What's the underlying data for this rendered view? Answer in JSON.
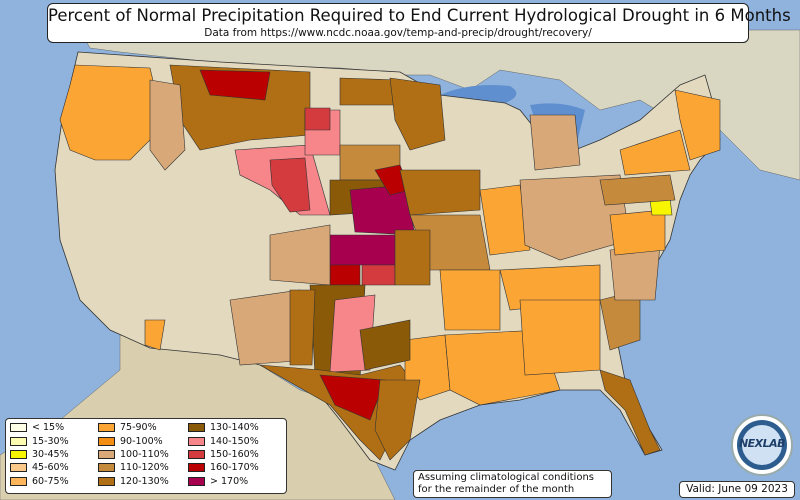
{
  "title": "Percent of Normal Precipitation Required to End Current Hydrological Drought in 6 Months",
  "subtitle": "Data from https://www.ncdc.noaa.gov/temp-and-precip/drought/recovery/",
  "legend": [
    {
      "label": "< 15%",
      "color": "#ffffe8"
    },
    {
      "label": "15-30%",
      "color": "#fdfbb0"
    },
    {
      "label": "30-45%",
      "color": "#f7f500"
    },
    {
      "label": "45-60%",
      "color": "#fbc98a"
    },
    {
      "label": "60-75%",
      "color": "#fcb55a"
    },
    {
      "label": "75-90%",
      "color": "#fba535"
    },
    {
      "label": "90-100%",
      "color": "#f48d14"
    },
    {
      "label": "100-110%",
      "color": "#d8a878"
    },
    {
      "label": "110-120%",
      "color": "#c68a3c"
    },
    {
      "label": "120-130%",
      "color": "#b06f14"
    },
    {
      "label": "130-140%",
      "color": "#8a5a08"
    },
    {
      "label": "140-150%",
      "color": "#f7868a"
    },
    {
      "label": "150-160%",
      "color": "#d33b3f"
    },
    {
      "label": "160-170%",
      "color": "#ba0000"
    },
    {
      "label": "> 170%",
      "color": "#a6004e"
    }
  ],
  "note_line1": "Assuming climatological conditions",
  "note_line2": "for the remainder of the month",
  "valid_text": "Valid: June 09 2023",
  "logo_text": "NEXLAB",
  "colors": {
    "ocean": "#8fb3dd",
    "land": "#e3d9bf",
    "border": "#333333"
  }
}
